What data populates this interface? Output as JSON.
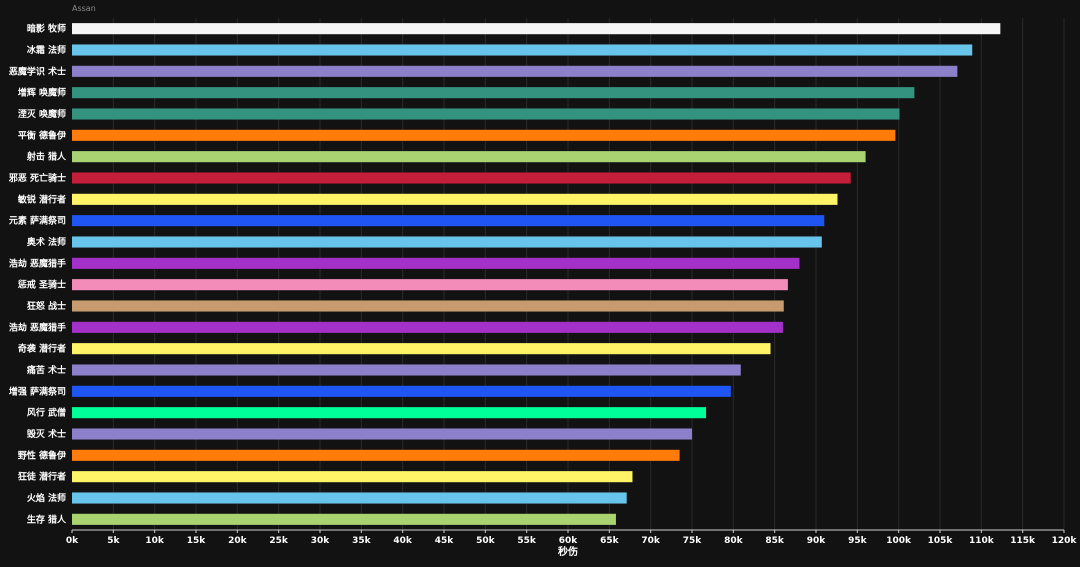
{
  "chart_data": {
    "type": "bar",
    "orientation": "horizontal",
    "title": "Assan",
    "xlabel": "秒伤",
    "ylabel": "",
    "xlim": [
      0,
      120000
    ],
    "ticks": [
      "0k",
      "5k",
      "10k",
      "15k",
      "20k",
      "25k",
      "30k",
      "35k",
      "40k",
      "45k",
      "50k",
      "55k",
      "60k",
      "65k",
      "70k",
      "75k",
      "80k",
      "85k",
      "90k",
      "95k",
      "100k",
      "105k",
      "110k",
      "115k",
      "120k"
    ],
    "grid": true,
    "categories": [
      "暗影 牧师",
      "冰霜 法师",
      "恶魔学识 术士",
      "增辉 唤魔师",
      "湮灭 唤魔师",
      "平衡 德鲁伊",
      "射击 猎人",
      "邪恶 死亡骑士",
      "敏锐 潜行者",
      "元素 萨满祭司",
      "奥术 法师",
      "浩劫 恶魔猎手",
      "惩戒 圣骑士",
      "狂怒 战士",
      "浩劫 恶魔猎手",
      "奇袭 潜行者",
      "痛苦 术士",
      "增强 萨满祭司",
      "风行 武僧",
      "毁灭 术士",
      "野性 德鲁伊",
      "狂徒 潜行者",
      "火焰 法师",
      "生存 猎人"
    ],
    "values": [
      112300,
      108900,
      107100,
      101900,
      100100,
      99600,
      96000,
      94200,
      92600,
      91000,
      90700,
      88000,
      86600,
      86100,
      86000,
      84500,
      80900,
      79700,
      76700,
      75000,
      73500,
      67800,
      67100,
      65800
    ],
    "colors": [
      "#f5f5f5",
      "#69c4ec",
      "#8b80c9",
      "#33937f",
      "#33937f",
      "#ff7c0a",
      "#a9d271",
      "#c41e3a",
      "#fff468",
      "#1f55f2",
      "#69c4ec",
      "#a330c9",
      "#f48cba",
      "#c69b6d",
      "#a330c9",
      "#fff468",
      "#8b80c9",
      "#1f55f2",
      "#00ff98",
      "#8b80c9",
      "#ff7c0a",
      "#fff468",
      "#69c4ec",
      "#a9d271"
    ]
  }
}
